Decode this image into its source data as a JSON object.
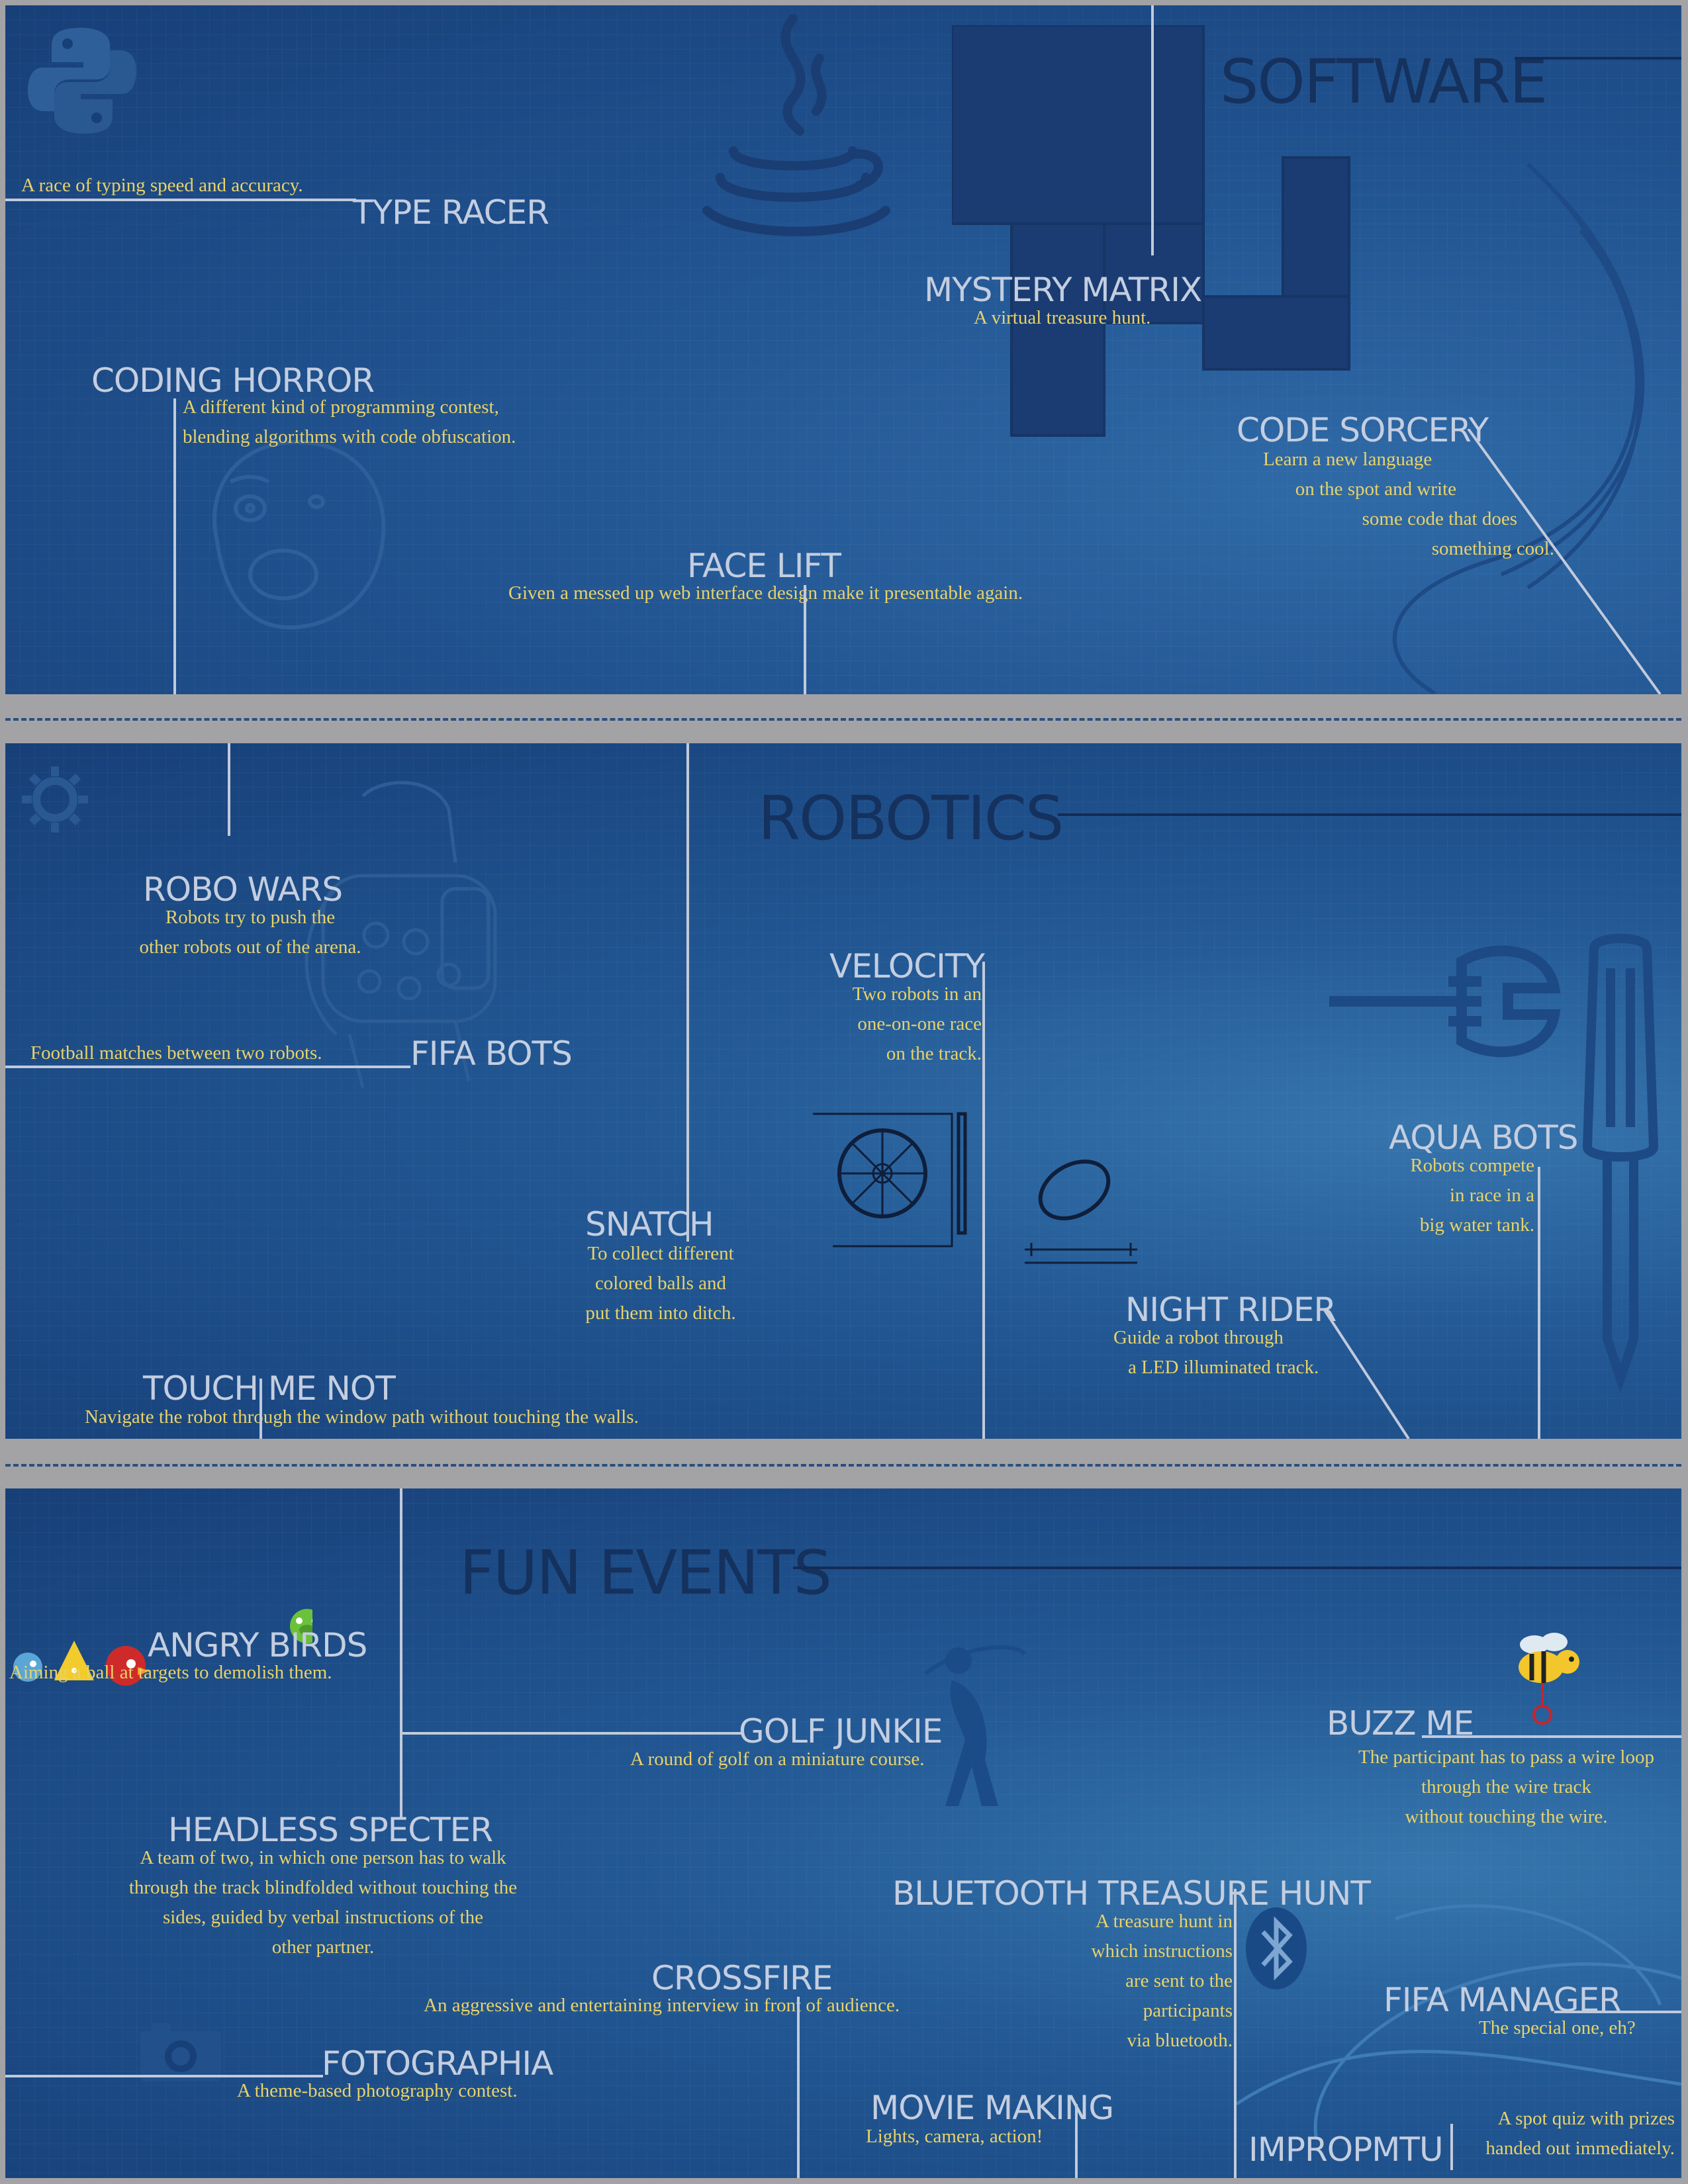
{
  "sections": {
    "software": {
      "title": "SOFTWARE",
      "events": {
        "type_racer": {
          "name": "TYPE RACER",
          "desc": [
            "A race of typing speed and accuracy."
          ]
        },
        "mystery_matrix": {
          "name": "MYSTERY MATRIX",
          "desc": [
            "A virtual treasure hunt."
          ]
        },
        "coding_horror": {
          "name": "CODING HORROR",
          "desc": [
            "A different kind of programming contest,",
            "blending algorithms with code obfuscation."
          ]
        },
        "code_sorcery": {
          "name": "CODE SORCERY",
          "desc": [
            "Learn a new language",
            "on the spot and write",
            "some code that does",
            "something cool."
          ]
        },
        "face_lift": {
          "name": "FACE LIFT",
          "desc": [
            "Given a messed up web interface  design make it presentable again."
          ]
        }
      }
    },
    "robotics": {
      "title": "ROBOTICS",
      "events": {
        "robo_wars": {
          "name": "ROBO WARS",
          "desc": [
            "Robots try to push the",
            "other robots out of the arena."
          ]
        },
        "fifa_bots": {
          "name": "FIFA BOTS",
          "desc": [
            "Football matches between two robots."
          ]
        },
        "velocity": {
          "name": "VELOCITY",
          "desc": [
            "Two robots in an",
            "one-on-one race",
            "on the track."
          ]
        },
        "aqua_bots": {
          "name": "AQUA BOTS",
          "desc": [
            "Robots compete",
            "in race in a",
            "big water tank."
          ]
        },
        "snatch": {
          "name": "SNATCH",
          "desc": [
            "To collect different",
            "colored balls and",
            "put them into ditch."
          ]
        },
        "night_rider": {
          "name": "NIGHT RIDER",
          "desc": [
            "Guide a robot through",
            "a LED illuminated track."
          ]
        },
        "touch_me_not": {
          "name": "TOUCH ME NOT",
          "desc": [
            "Navigate the robot  through the window path without touching the walls."
          ]
        }
      }
    },
    "fun": {
      "title": "FUN EVENTS",
      "events": {
        "angry_birds": {
          "name": "ANGRY BIRDS",
          "desc": [
            "Aiming a ball at targets to demolish them."
          ]
        },
        "golf_junkie": {
          "name": "GOLF JUNKIE",
          "desc": [
            "A round of golf on a miniature course."
          ]
        },
        "buzz_me": {
          "name": "BUZZ ME",
          "desc": [
            "The participant has to pass a wire loop",
            "through the wire track",
            "without touching the wire."
          ]
        },
        "headless_specter": {
          "name": "HEADLESS SPECTER",
          "desc": [
            "A team of two, in which one person has to walk",
            "through the track blindfolded without touching the",
            "sides, guided by verbal instructions of the",
            "other partner."
          ]
        },
        "bluetooth_treasure_hunt": {
          "name": "BLUETOOTH TREASURE HUNT",
          "desc": [
            "A treasure hunt in",
            "which instructions",
            "are sent to the",
            "participants",
            "via bluetooth."
          ]
        },
        "crossfire": {
          "name": "CROSSFIRE",
          "desc": [
            "An aggressive and entertaining interview  in front of audience."
          ]
        },
        "fifa_manager": {
          "name": "FIFA MANAGER",
          "desc": [
            "The special one, eh?"
          ]
        },
        "fotographia": {
          "name": "FOTOGRAPHIA",
          "desc": [
            "A theme-based photography contest."
          ]
        },
        "movie_making": {
          "name": "MOVIE MAKING",
          "desc": [
            "Lights, camera, action!"
          ]
        },
        "impropmtu": {
          "name": "IMPROPMTU",
          "desc": [
            "A spot quiz with prizes",
            "handed out immediately."
          ]
        }
      }
    }
  },
  "colors": {
    "background": "#a3a3a5",
    "panel_dark": "#173f78",
    "panel_light": "#3676ad",
    "event_name": "#c4cee0",
    "description": "#e9d268",
    "section_title": "#15315e"
  },
  "icons": [
    "python-logo-icon",
    "java-cup-icon",
    "tetris-blocks-icon",
    "rage-face-icon",
    "robot-sketch-icon",
    "gear-icon",
    "wrench-icon",
    "screwdriver-icon",
    "wheel-blueprint-icon",
    "angry-birds-icon",
    "golfer-icon",
    "bee-icon",
    "bluetooth-icon",
    "camera-icon"
  ]
}
